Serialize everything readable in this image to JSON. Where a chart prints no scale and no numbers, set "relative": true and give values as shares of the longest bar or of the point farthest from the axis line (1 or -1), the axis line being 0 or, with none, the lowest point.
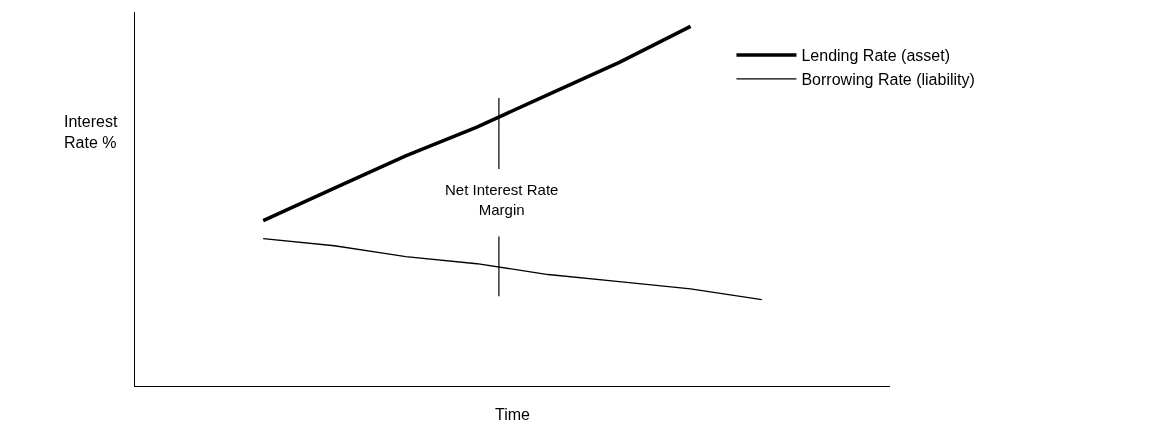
{
  "chart_data": {
    "type": "line",
    "relative": true,
    "xlabel": "Time",
    "ylabel": "Interest\nRate %",
    "categories": [
      null,
      null,
      null,
      null,
      null,
      null,
      null,
      null,
      null,
      null
    ],
    "series": [
      {
        "name": "Lending Rate (asset)",
        "color": "#000000",
        "values": [
          null,
          0.46,
          0.55,
          0.64,
          0.72,
          0.81,
          0.9,
          1.0,
          null,
          null
        ]
      },
      {
        "name": "Borrowing Rate (liability)",
        "color": "#000000",
        "values": [
          null,
          0.41,
          0.39,
          0.36,
          0.34,
          0.31,
          0.29,
          0.27,
          0.24,
          null
        ]
      }
    ],
    "annotations": [
      "Net Interest Rate\nMargin"
    ],
    "legend": "top right",
    "grid": false,
    "marker": "none",
    "line_style": "solid"
  }
}
